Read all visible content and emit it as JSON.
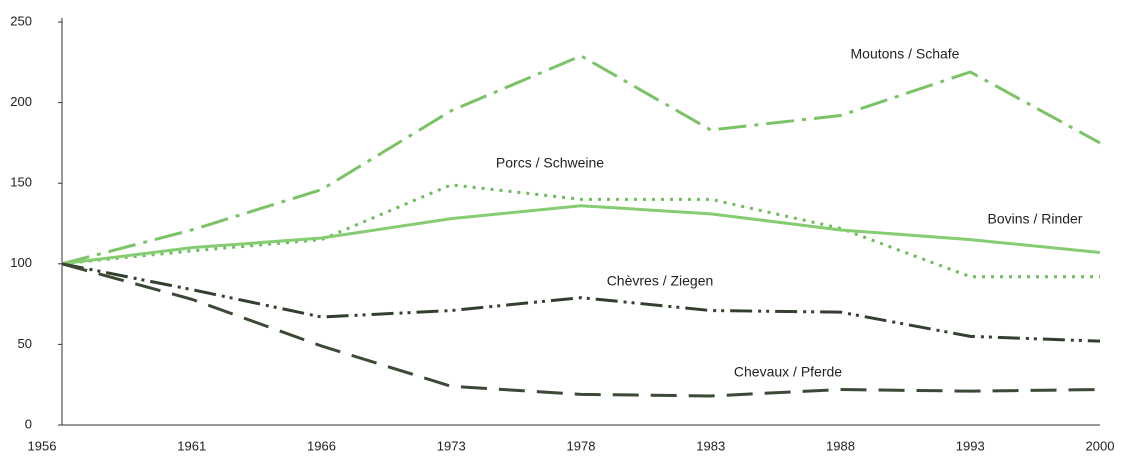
{
  "chart_data": {
    "type": "line",
    "categories": [
      "1956",
      "1961",
      "1966",
      "1973",
      "1978",
      "1983",
      "1988",
      "1993",
      "2000"
    ],
    "series": [
      {
        "name": "Moutons / Schafe",
        "color": "#7cc267",
        "values": [
          100,
          121,
          146,
          195,
          229,
          183,
          192,
          219,
          175
        ]
      },
      {
        "name": "Porcs / Schweine",
        "color": "#6dbd5c",
        "values": [
          100,
          108,
          115,
          149,
          140,
          140,
          122,
          92,
          92
        ]
      },
      {
        "name": "Bovins / Rinder",
        "color": "#86cc72",
        "values": [
          100,
          110,
          116,
          128,
          136,
          131,
          121,
          115,
          107
        ]
      },
      {
        "name": "Chèvres / Ziegen",
        "color": "#334030",
        "values": [
          100,
          84,
          67,
          71,
          79,
          71,
          70,
          55,
          52
        ]
      },
      {
        "name": "Chevaux / Pferde",
        "color": "#3a4a34",
        "values": [
          100,
          78,
          49,
          24,
          19,
          18,
          22,
          21,
          22
        ]
      }
    ],
    "ylim": [
      0,
      250
    ],
    "yticks": [
      0,
      50,
      100,
      150,
      200,
      250
    ],
    "grid": false
  }
}
